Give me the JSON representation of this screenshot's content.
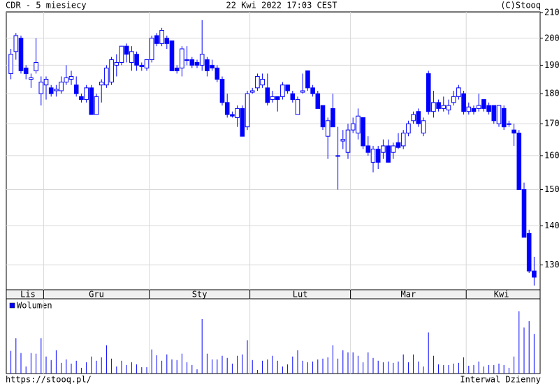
{
  "header": {
    "left": "CDR - 5 miesiecy",
    "center": "22 Kwi 2022 17:03 CEST",
    "right": "(C)Stooq"
  },
  "footer": {
    "left": "https://stooq.pl/",
    "right": "Interwal Dzienny"
  },
  "chart_data": [
    {
      "type": "candlestick",
      "log": true,
      "grid": true,
      "color": "#0000ff",
      "ylim": [
        124,
        210
      ],
      "yticks": [
        130,
        140,
        150,
        160,
        170,
        180,
        190,
        200,
        210
      ],
      "months": [
        {
          "label": "Lis",
          "first": 0
        },
        {
          "label": "Gru",
          "first": 7
        },
        {
          "label": "Sty",
          "first": 28
        },
        {
          "label": "Lut",
          "first": 48
        },
        {
          "label": "Mar",
          "first": 68
        },
        {
          "label": "Kwi",
          "first": 91
        }
      ],
      "open": [
        187,
        195,
        200,
        189,
        185,
        188,
        180,
        183,
        182,
        181,
        181,
        184,
        185,
        183,
        179,
        178,
        182,
        173,
        183,
        183,
        184,
        190,
        191,
        197,
        191,
        194,
        190,
        189,
        192,
        201,
        198,
        200,
        199,
        189,
        189,
        192,
        192,
        191,
        190,
        192,
        190,
        189,
        185,
        177,
        173,
        172,
        175,
        169,
        180.5,
        182,
        183,
        182,
        178,
        179,
        179,
        183,
        180,
        173,
        180.5,
        188,
        182,
        180,
        176,
        166,
        175,
        160,
        164.5,
        161,
        168,
        167,
        172,
        163,
        158,
        162,
        161,
        163,
        161,
        164,
        163,
        167,
        171,
        174,
        167,
        187,
        174,
        177,
        175,
        174.5,
        177,
        179,
        180,
        174,
        175,
        175,
        178,
        176,
        176,
        170,
        175,
        170,
        168,
        167,
        150,
        138,
        128.5
      ],
      "high": [
        196,
        202,
        201,
        190,
        187,
        200,
        186,
        186,
        183,
        183,
        186,
        190,
        188,
        186,
        180,
        183,
        183,
        180,
        185,
        190,
        193,
        194,
        197,
        198,
        197,
        195,
        191,
        192,
        201,
        202,
        204,
        201,
        199,
        190,
        197,
        197,
        193,
        192,
        207,
        193,
        192,
        190,
        186,
        180,
        174,
        176,
        176,
        181,
        182,
        187,
        187,
        187,
        181,
        179,
        184,
        183,
        181,
        179,
        187,
        188,
        183,
        181,
        176,
        172,
        180,
        169,
        168,
        170,
        172,
        175,
        172,
        166,
        163,
        163,
        165,
        165,
        164,
        167,
        168,
        171,
        174,
        175,
        172,
        188,
        181,
        178,
        179,
        178,
        181,
        183,
        181,
        177,
        176,
        180,
        178,
        177,
        176,
        176,
        176,
        171,
        170,
        168,
        152,
        139,
        132
      ],
      "low": [
        185,
        192,
        187,
        185,
        182,
        187,
        176,
        178,
        179,
        179,
        180,
        183,
        183,
        179,
        177,
        177,
        173,
        173,
        177,
        182,
        183,
        186,
        190,
        191,
        188,
        188,
        188,
        188,
        191,
        197,
        197,
        196,
        188,
        187,
        186,
        190,
        189,
        189,
        188,
        186,
        188,
        184,
        176,
        172,
        172,
        169,
        166,
        168,
        180,
        181,
        182,
        176,
        177,
        174,
        178,
        180,
        177,
        173,
        180,
        181,
        179,
        175,
        168,
        159,
        169,
        150,
        162,
        159,
        167,
        165,
        162,
        160,
        155,
        156,
        159,
        158,
        159,
        162,
        162,
        166,
        170,
        169,
        166,
        173,
        172,
        174,
        174,
        173,
        176,
        178,
        173,
        173,
        173,
        174,
        174,
        173,
        170,
        169,
        168,
        169,
        163,
        150,
        137,
        128,
        125
      ],
      "close": [
        194,
        201,
        188,
        187,
        185.5,
        191,
        184,
        185,
        180,
        181.5,
        184,
        185.5,
        186,
        180,
        178,
        182,
        173,
        179,
        184,
        189,
        192,
        191,
        197,
        194,
        195,
        190,
        189.5,
        192,
        200,
        198,
        203,
        198,
        188,
        188,
        196,
        192,
        190,
        190,
        194,
        188,
        189,
        185,
        177,
        173,
        172.5,
        175,
        166,
        180,
        181,
        186,
        185,
        177,
        179,
        178,
        183,
        181,
        178,
        178,
        181,
        182,
        180,
        175,
        169,
        171,
        169,
        160,
        165,
        168,
        170,
        172.5,
        163,
        161,
        162,
        158,
        163,
        158,
        163,
        162.5,
        167,
        170,
        173,
        170,
        171,
        174,
        177,
        175,
        176,
        176,
        179,
        182,
        174,
        175.5,
        174,
        176,
        175,
        174,
        171,
        176,
        169,
        170,
        167,
        150,
        137,
        128.5,
        127
      ]
    },
    {
      "type": "bar",
      "color": "#0000ff",
      "series": [
        {
          "name": "Wolumen",
          "color": "#0000ff",
          "values": [
            32,
            50,
            29,
            10,
            29,
            28,
            50,
            24,
            19,
            33,
            15,
            20,
            14,
            18,
            8,
            16,
            24,
            18,
            23,
            40,
            21,
            10,
            18,
            12,
            16,
            13,
            9,
            9,
            34,
            26,
            18,
            27,
            20,
            19,
            28,
            16,
            12,
            6,
            77,
            28,
            20,
            20,
            25,
            22,
            14,
            25,
            27,
            47,
            19,
            5,
            18,
            20,
            25,
            18,
            10,
            13,
            24,
            33,
            18,
            16,
            17,
            20,
            21,
            23,
            40,
            21,
            33,
            30,
            30,
            25,
            16,
            30,
            22,
            18,
            16,
            17,
            15,
            17,
            27,
            16,
            27,
            17,
            10,
            58,
            25,
            13,
            12,
            12,
            14,
            15,
            23,
            11,
            12,
            17,
            10,
            12,
            12,
            14,
            12,
            8,
            24,
            88,
            65,
            74,
            56
          ]
        }
      ]
    }
  ]
}
